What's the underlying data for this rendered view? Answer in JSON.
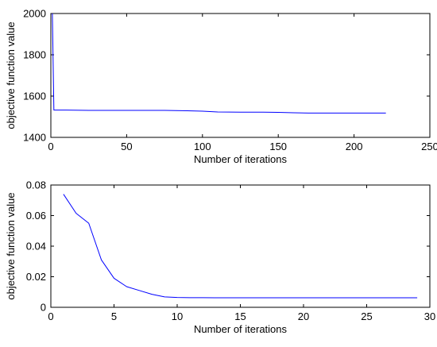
{
  "chart_data": [
    {
      "type": "line",
      "title": "",
      "xlabel": "Number of iterations",
      "ylabel": "objective function value",
      "xlim": [
        0,
        250
      ],
      "ylim": [
        1400,
        2000
      ],
      "xticks": [
        0,
        50,
        100,
        150,
        200,
        250
      ],
      "yticks": [
        1400,
        1600,
        1800,
        2000
      ],
      "grid": false,
      "line_color": "#0000ff",
      "series": [
        {
          "x": [
            1,
            2,
            10,
            25,
            50,
            75,
            90,
            100,
            110,
            125,
            140,
            150,
            160,
            170,
            180,
            200,
            221
          ],
          "y": [
            2000,
            1532,
            1532,
            1531,
            1531,
            1531,
            1529,
            1527,
            1523,
            1522,
            1522,
            1521,
            1519,
            1518,
            1518,
            1518,
            1518
          ]
        }
      ]
    },
    {
      "type": "line",
      "title": "",
      "xlabel": "Number of iterations",
      "ylabel": "objective function value",
      "xlim": [
        0,
        30
      ],
      "ylim": [
        0,
        0.08
      ],
      "xticks": [
        0,
        5,
        10,
        15,
        20,
        25,
        30
      ],
      "yticks": [
        0,
        0.02,
        0.04,
        0.06,
        0.08
      ],
      "grid": false,
      "line_color": "#0000ff",
      "series": [
        {
          "x": [
            1,
            2,
            3,
            4,
            5,
            6,
            7,
            8,
            9,
            10,
            11,
            12,
            13,
            15,
            20,
            25,
            29
          ],
          "y": [
            0.074,
            0.0615,
            0.055,
            0.031,
            0.019,
            0.0135,
            0.011,
            0.0085,
            0.0068,
            0.0064,
            0.0063,
            0.0063,
            0.0062,
            0.0062,
            0.0062,
            0.0062,
            0.0062
          ]
        }
      ]
    }
  ]
}
